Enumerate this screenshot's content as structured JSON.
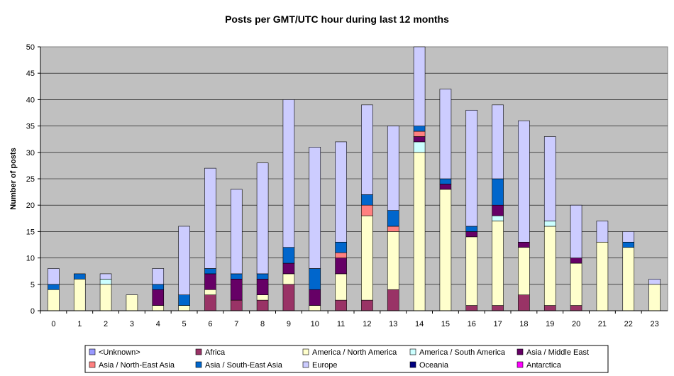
{
  "chart_data": {
    "type": "bar",
    "stacked": true,
    "title": "Posts per GMT/UTC hour during last 12 months",
    "xlabel": "",
    "ylabel": "Number of posts",
    "ylim": [
      0,
      50
    ],
    "yticks": [
      0,
      5,
      10,
      15,
      20,
      25,
      30,
      35,
      40,
      45,
      50
    ],
    "grid": "horizontal",
    "plot_background": "#c0c0c0",
    "legend_position": "bottom",
    "categories": [
      "0",
      "1",
      "2",
      "3",
      "4",
      "5",
      "6",
      "7",
      "8",
      "9",
      "10",
      "11",
      "12",
      "13",
      "14",
      "15",
      "16",
      "17",
      "18",
      "19",
      "20",
      "21",
      "22",
      "23"
    ],
    "series": [
      {
        "name": "<Unknown>",
        "color": "#9999ff",
        "values": [
          0,
          0,
          0,
          0,
          0,
          0,
          0,
          0,
          0,
          0,
          0,
          0,
          0,
          0,
          0,
          0,
          0,
          0,
          0,
          0,
          0,
          0,
          0,
          0
        ]
      },
      {
        "name": "Africa",
        "color": "#993366",
        "values": [
          0,
          0,
          0,
          0,
          0,
          0,
          3,
          2,
          2,
          5,
          0,
          2,
          2,
          4,
          0,
          0,
          1,
          1,
          3,
          1,
          1,
          0,
          0,
          0
        ]
      },
      {
        "name": "America / North America",
        "color": "#ffffcc",
        "values": [
          4,
          6,
          5,
          3,
          1,
          1,
          1,
          0,
          1,
          2,
          1,
          5,
          16,
          11,
          30,
          23,
          13,
          16,
          9,
          15,
          8,
          13,
          12,
          5
        ]
      },
      {
        "name": "America / South America",
        "color": "#ccffff",
        "values": [
          0,
          0,
          1,
          0,
          0,
          0,
          0,
          0,
          0,
          0,
          0,
          0,
          0,
          0,
          2,
          0,
          0,
          1,
          0,
          1,
          0,
          0,
          0,
          0
        ]
      },
      {
        "name": "Asia / Middle East",
        "color": "#660066",
        "values": [
          0,
          0,
          0,
          0,
          3,
          0,
          3,
          4,
          3,
          2,
          3,
          3,
          0,
          0,
          1,
          1,
          1,
          2,
          1,
          0,
          1,
          0,
          0,
          0
        ]
      },
      {
        "name": "Asia / North-East Asia",
        "color": "#ff8080",
        "values": [
          0,
          0,
          0,
          0,
          0,
          0,
          0,
          0,
          0,
          0,
          0,
          1,
          2,
          1,
          1,
          0,
          0,
          0,
          0,
          0,
          0,
          0,
          0,
          0
        ]
      },
      {
        "name": "Asia / South-East Asia",
        "color": "#0066cc",
        "values": [
          1,
          1,
          0,
          0,
          1,
          2,
          1,
          1,
          1,
          3,
          4,
          2,
          2,
          3,
          1,
          1,
          1,
          5,
          0,
          0,
          0,
          0,
          1,
          0
        ]
      },
      {
        "name": "Europe",
        "color": "#ccccff",
        "values": [
          3,
          0,
          1,
          0,
          3,
          13,
          19,
          16,
          21,
          28,
          23,
          19,
          17,
          16,
          15,
          17,
          22,
          14,
          23,
          16,
          10,
          4,
          2,
          1
        ]
      },
      {
        "name": "Oceania",
        "color": "#000080",
        "values": [
          0,
          0,
          0,
          0,
          0,
          0,
          0,
          0,
          0,
          0,
          0,
          0,
          0,
          0,
          0,
          0,
          0,
          0,
          0,
          0,
          0,
          0,
          0,
          0
        ]
      },
      {
        "name": "Antarctica",
        "color": "#ff00ff",
        "values": [
          0,
          0,
          0,
          0,
          0,
          0,
          0,
          0,
          0,
          0,
          0,
          0,
          0,
          0,
          0,
          0,
          0,
          0,
          0,
          0,
          0,
          0,
          0,
          0
        ]
      }
    ]
  }
}
